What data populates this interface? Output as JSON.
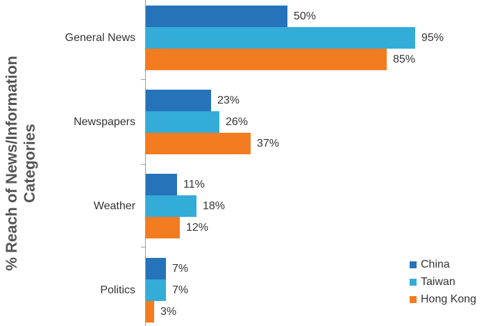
{
  "chart_data": {
    "type": "bar",
    "orientation": "horizontal",
    "title": "",
    "xlabel": "",
    "ylabel": "% Reach of News/Information Categories",
    "ylabel_lines": [
      "% Reach of News/Information",
      "Categories"
    ],
    "categories": [
      "General News",
      "Newspapers",
      "Weather",
      "Politics"
    ],
    "series": [
      {
        "name": "China",
        "color": "#2673ba",
        "values": [
          50,
          23,
          11,
          7
        ],
        "labels": [
          "50%",
          "23%",
          "11%",
          "7%"
        ]
      },
      {
        "name": "Taiwan",
        "color": "#33acd8",
        "values": [
          95,
          26,
          18,
          7
        ],
        "labels": [
          "95%",
          "26%",
          "18%",
          "7%"
        ]
      },
      {
        "name": "Hong Kong",
        "color": "#f37b20",
        "values": [
          85,
          37,
          12,
          3
        ],
        "labels": [
          "85%",
          "37%",
          "12%",
          "3%"
        ]
      }
    ],
    "xlim": [
      0,
      100
    ],
    "grid": false,
    "legend_position": "bottom-right",
    "data_labels": true
  },
  "legend": {
    "items": [
      {
        "label": "China",
        "color": "#2673ba"
      },
      {
        "label": "Taiwan",
        "color": "#33acd8"
      },
      {
        "label": "Hong Kong",
        "color": "#f37b20"
      }
    ]
  }
}
